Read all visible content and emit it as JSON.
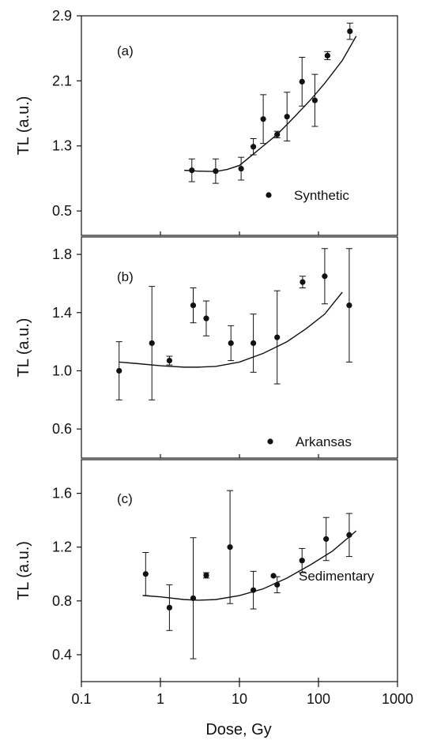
{
  "figure": {
    "xlabel": "Dose, Gy",
    "xscale": "log",
    "xlim": [
      0.1,
      1000
    ],
    "x_ticks": [
      0.1,
      1,
      10,
      100,
      1000
    ],
    "x_tick_labels": [
      "0.1",
      "1",
      "10",
      "100",
      "1000"
    ],
    "colors": {
      "marker": "#111111",
      "line": "#111111",
      "frame": "#111111"
    }
  },
  "chart_data": [
    {
      "type": "scatter",
      "panel_label": "(a)",
      "ylabel": "TL (a.u.)",
      "ylim": [
        0.2,
        2.9
      ],
      "y_ticks": [
        0.5,
        1.3,
        2.1,
        2.9
      ],
      "y_tick_labels": [
        "0.5",
        "1.3",
        "2.1",
        "2.9"
      ],
      "grid": false,
      "legend_position": "bottom-right",
      "series": [
        {
          "name": "Synthetic",
          "points": [
            {
              "x": 2.5,
              "y": 1.0,
              "err": 0.14
            },
            {
              "x": 5.0,
              "y": 0.99,
              "err": 0.15
            },
            {
              "x": 10.5,
              "y": 1.02,
              "err": 0.14
            },
            {
              "x": 15,
              "y": 1.29,
              "err": 0.1
            },
            {
              "x": 20,
              "y": 1.63,
              "err": 0.3
            },
            {
              "x": 30,
              "y": 1.44,
              "err": 0.04
            },
            {
              "x": 40,
              "y": 1.66,
              "err": 0.3
            },
            {
              "x": 62,
              "y": 2.09,
              "err": 0.3
            },
            {
              "x": 90,
              "y": 1.86,
              "err": 0.32
            },
            {
              "x": 130,
              "y": 2.41,
              "err": 0.05
            },
            {
              "x": 250,
              "y": 2.71,
              "err": 0.1
            }
          ],
          "fit": [
            {
              "x": 2.0,
              "y": 1.0
            },
            {
              "x": 3.0,
              "y": 0.99
            },
            {
              "x": 5.0,
              "y": 0.985
            },
            {
              "x": 7.0,
              "y": 1.01
            },
            {
              "x": 10.0,
              "y": 1.06
            },
            {
              "x": 15,
              "y": 1.2
            },
            {
              "x": 20,
              "y": 1.3
            },
            {
              "x": 30,
              "y": 1.44
            },
            {
              "x": 50,
              "y": 1.66
            },
            {
              "x": 80,
              "y": 1.87
            },
            {
              "x": 120,
              "y": 2.07
            },
            {
              "x": 200,
              "y": 2.35
            },
            {
              "x": 300,
              "y": 2.65
            }
          ]
        }
      ]
    },
    {
      "type": "scatter",
      "panel_label": "(b)",
      "ylabel": "TL (a.u.)",
      "ylim": [
        0.4,
        1.92
      ],
      "y_ticks": [
        0.6,
        1.0,
        1.4,
        1.8
      ],
      "y_tick_labels": [
        "0.6",
        "1.0",
        "1.4",
        "1.8"
      ],
      "grid": false,
      "legend_position": "bottom-right",
      "series": [
        {
          "name": "Arkansas",
          "points": [
            {
              "x": 0.3,
              "y": 1.0,
              "err": 0.2
            },
            {
              "x": 0.78,
              "y": 1.19,
              "err": 0.39
            },
            {
              "x": 1.3,
              "y": 1.07,
              "err": 0.03
            },
            {
              "x": 2.6,
              "y": 1.45,
              "err": 0.12
            },
            {
              "x": 3.8,
              "y": 1.36,
              "err": 0.12
            },
            {
              "x": 7.8,
              "y": 1.19,
              "err": 0.12
            },
            {
              "x": 15,
              "y": 1.19,
              "err": 0.2
            },
            {
              "x": 30,
              "y": 1.23,
              "err": 0.32
            },
            {
              "x": 63,
              "y": 1.61,
              "err": 0.04
            },
            {
              "x": 120,
              "y": 1.65,
              "err": 0.19
            },
            {
              "x": 245,
              "y": 1.45,
              "err": 0.39
            }
          ],
          "fit": [
            {
              "x": 0.3,
              "y": 1.06
            },
            {
              "x": 0.5,
              "y": 1.05
            },
            {
              "x": 1.0,
              "y": 1.035
            },
            {
              "x": 2.0,
              "y": 1.025
            },
            {
              "x": 3.0,
              "y": 1.025
            },
            {
              "x": 5.0,
              "y": 1.03
            },
            {
              "x": 10,
              "y": 1.06
            },
            {
              "x": 20,
              "y": 1.12
            },
            {
              "x": 40,
              "y": 1.2
            },
            {
              "x": 70,
              "y": 1.29
            },
            {
              "x": 120,
              "y": 1.39
            },
            {
              "x": 200,
              "y": 1.54
            }
          ]
        }
      ]
    },
    {
      "type": "scatter",
      "panel_label": "(c)",
      "ylabel": "TL (a.u.)",
      "ylim": [
        0.2,
        1.85
      ],
      "y_ticks": [
        0.4,
        0.8,
        1.2,
        1.6
      ],
      "y_tick_labels": [
        "0.4",
        "0.8",
        "1.2",
        "1.6"
      ],
      "grid": false,
      "legend_position": "bottom-right",
      "series": [
        {
          "name": "Sedimentary",
          "points": [
            {
              "x": 0.65,
              "y": 1.0,
              "err": 0.16
            },
            {
              "x": 1.3,
              "y": 0.75,
              "err": 0.17
            },
            {
              "x": 2.6,
              "y": 0.82,
              "err": 0.45
            },
            {
              "x": 3.8,
              "y": 0.99,
              "err": 0.02
            },
            {
              "x": 7.6,
              "y": 1.2,
              "err": 0.42
            },
            {
              "x": 15,
              "y": 0.88,
              "err": 0.14
            },
            {
              "x": 30,
              "y": 0.92,
              "err": 0.06
            },
            {
              "x": 62,
              "y": 1.1,
              "err": 0.09
            },
            {
              "x": 125,
              "y": 1.26,
              "err": 0.16
            },
            {
              "x": 245,
              "y": 1.29,
              "err": 0.16
            }
          ],
          "fit": [
            {
              "x": 0.6,
              "y": 0.84
            },
            {
              "x": 1.0,
              "y": 0.83
            },
            {
              "x": 2.0,
              "y": 0.81
            },
            {
              "x": 3.0,
              "y": 0.805
            },
            {
              "x": 5.0,
              "y": 0.81
            },
            {
              "x": 10,
              "y": 0.84
            },
            {
              "x": 20,
              "y": 0.89
            },
            {
              "x": 40,
              "y": 0.97
            },
            {
              "x": 80,
              "y": 1.07
            },
            {
              "x": 150,
              "y": 1.17
            },
            {
              "x": 300,
              "y": 1.32
            }
          ]
        }
      ]
    }
  ]
}
